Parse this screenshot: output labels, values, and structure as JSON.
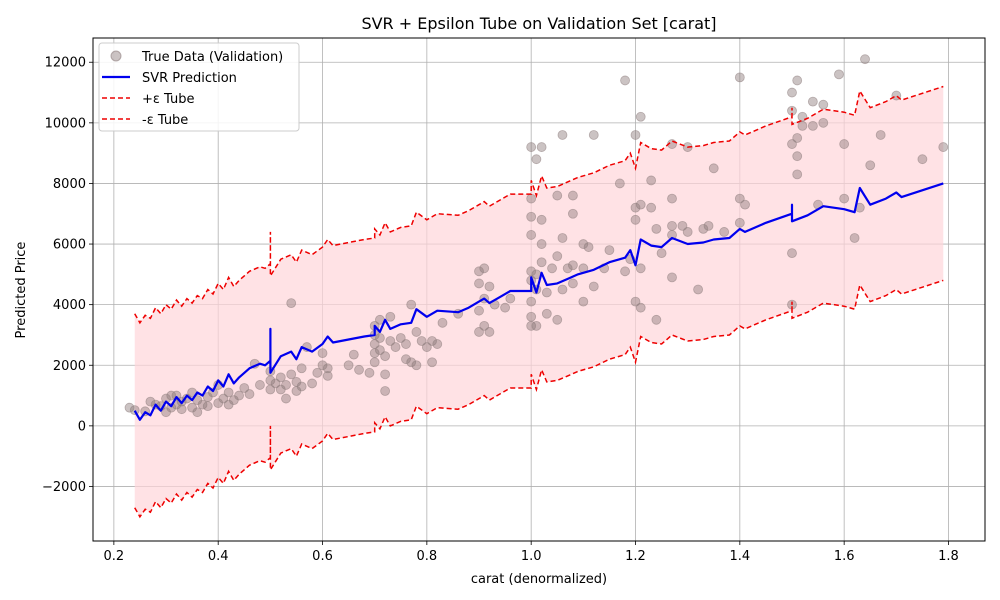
{
  "chart_data": {
    "type": "scatter",
    "title": "SVR + Epsilon Tube on Validation Set [carat]",
    "xlabel": "carat (denormalized)",
    "ylabel": "Predicted Price",
    "xlim": [
      0.16,
      1.87
    ],
    "ylim": [
      -3800,
      12800
    ],
    "xticks": [
      0.2,
      0.4,
      0.6,
      0.8,
      1.0,
      1.2,
      1.4,
      1.6,
      1.8
    ],
    "xtick_labels": [
      "0.2",
      "0.4",
      "0.6",
      "0.8",
      "1.0",
      "1.2",
      "1.4",
      "1.6",
      "1.8"
    ],
    "yticks": [
      -2000,
      0,
      2000,
      4000,
      6000,
      8000,
      10000,
      12000
    ],
    "ytick_labels": [
      "−2000",
      "0",
      "2000",
      "4000",
      "6000",
      "8000",
      "10000",
      "12000"
    ],
    "grid": true,
    "legend_position": "top-left",
    "epsilon": 3200,
    "colors": {
      "scatter": "#8c7b7b",
      "prediction": "#0000ee",
      "tube": "#ee0000",
      "tube_fill": "#ffd6da"
    },
    "series": [
      {
        "name": "True Data (Validation)",
        "kind": "scatter",
        "points": [
          [
            0.23,
            600
          ],
          [
            0.24,
            520
          ],
          [
            0.26,
            480
          ],
          [
            0.27,
            800
          ],
          [
            0.28,
            700
          ],
          [
            0.29,
            650
          ],
          [
            0.3,
            900
          ],
          [
            0.3,
            450
          ],
          [
            0.31,
            1000
          ],
          [
            0.31,
            600
          ],
          [
            0.32,
            700
          ],
          [
            0.32,
            1000
          ],
          [
            0.33,
            800
          ],
          [
            0.33,
            550
          ],
          [
            0.34,
            900
          ],
          [
            0.35,
            1100
          ],
          [
            0.35,
            600
          ],
          [
            0.36,
            450
          ],
          [
            0.36,
            850
          ],
          [
            0.37,
            700
          ],
          [
            0.38,
            950
          ],
          [
            0.38,
            650
          ],
          [
            0.39,
            1100
          ],
          [
            0.4,
            750
          ],
          [
            0.4,
            1350
          ],
          [
            0.41,
            900
          ],
          [
            0.42,
            700
          ],
          [
            0.42,
            1100
          ],
          [
            0.43,
            850
          ],
          [
            0.44,
            1000
          ],
          [
            0.45,
            1250
          ],
          [
            0.46,
            1050
          ],
          [
            0.47,
            2050
          ],
          [
            0.48,
            1350
          ],
          [
            0.5,
            1200
          ],
          [
            0.5,
            1500
          ],
          [
            0.5,
            1800
          ],
          [
            0.51,
            1400
          ],
          [
            0.52,
            1600
          ],
          [
            0.52,
            1200
          ],
          [
            0.53,
            900
          ],
          [
            0.53,
            1350
          ],
          [
            0.54,
            4050
          ],
          [
            0.54,
            1700
          ],
          [
            0.55,
            1450
          ],
          [
            0.55,
            1150
          ],
          [
            0.56,
            1900
          ],
          [
            0.56,
            1300
          ],
          [
            0.57,
            2600
          ],
          [
            0.58,
            1400
          ],
          [
            0.59,
            1750
          ],
          [
            0.6,
            2000
          ],
          [
            0.6,
            2400
          ],
          [
            0.61,
            1900
          ],
          [
            0.61,
            1650
          ],
          [
            0.65,
            2000
          ],
          [
            0.66,
            2350
          ],
          [
            0.67,
            1850
          ],
          [
            0.69,
            1750
          ],
          [
            0.7,
            2100
          ],
          [
            0.7,
            2400
          ],
          [
            0.7,
            2700
          ],
          [
            0.7,
            3000
          ],
          [
            0.7,
            3300
          ],
          [
            0.71,
            2500
          ],
          [
            0.71,
            2900
          ],
          [
            0.71,
            3500
          ],
          [
            0.72,
            1700
          ],
          [
            0.72,
            1150
          ],
          [
            0.72,
            2300
          ],
          [
            0.73,
            2800
          ],
          [
            0.73,
            3600
          ],
          [
            0.74,
            2600
          ],
          [
            0.75,
            2900
          ],
          [
            0.76,
            2200
          ],
          [
            0.76,
            2700
          ],
          [
            0.77,
            2100
          ],
          [
            0.77,
            4000
          ],
          [
            0.78,
            2000
          ],
          [
            0.78,
            3100
          ],
          [
            0.79,
            2800
          ],
          [
            0.8,
            2600
          ],
          [
            0.81,
            2100
          ],
          [
            0.81,
            2800
          ],
          [
            0.82,
            2700
          ],
          [
            0.83,
            3400
          ],
          [
            0.86,
            3700
          ],
          [
            0.9,
            3800
          ],
          [
            0.9,
            3100
          ],
          [
            0.9,
            4700
          ],
          [
            0.9,
            5100
          ],
          [
            0.91,
            3300
          ],
          [
            0.91,
            4200
          ],
          [
            0.91,
            5200
          ],
          [
            0.92,
            3100
          ],
          [
            0.92,
            4600
          ],
          [
            0.93,
            4000
          ],
          [
            0.95,
            3900
          ],
          [
            0.96,
            4200
          ],
          [
            1.0,
            3300
          ],
          [
            1.0,
            3600
          ],
          [
            1.0,
            4100
          ],
          [
            1.0,
            4800
          ],
          [
            1.0,
            5100
          ],
          [
            1.0,
            6300
          ],
          [
            1.0,
            6900
          ],
          [
            1.0,
            7500
          ],
          [
            1.0,
            9200
          ],
          [
            1.01,
            4500
          ],
          [
            1.01,
            5000
          ],
          [
            1.01,
            8800
          ],
          [
            1.01,
            3300
          ],
          [
            1.02,
            5400
          ],
          [
            1.02,
            6000
          ],
          [
            1.02,
            6800
          ],
          [
            1.02,
            9200
          ],
          [
            1.03,
            4400
          ],
          [
            1.03,
            3700
          ],
          [
            1.04,
            5200
          ],
          [
            1.05,
            3500
          ],
          [
            1.05,
            5600
          ],
          [
            1.05,
            7600
          ],
          [
            1.06,
            4500
          ],
          [
            1.06,
            6200
          ],
          [
            1.06,
            9600
          ],
          [
            1.07,
            5200
          ],
          [
            1.08,
            4700
          ],
          [
            1.08,
            5300
          ],
          [
            1.08,
            7000
          ],
          [
            1.08,
            7600
          ],
          [
            1.1,
            5200
          ],
          [
            1.1,
            6000
          ],
          [
            1.1,
            4100
          ],
          [
            1.11,
            5900
          ],
          [
            1.12,
            4600
          ],
          [
            1.12,
            9600
          ],
          [
            1.14,
            5200
          ],
          [
            1.15,
            5800
          ],
          [
            1.17,
            8000
          ],
          [
            1.18,
            5100
          ],
          [
            1.18,
            11400
          ],
          [
            1.19,
            5500
          ],
          [
            1.2,
            4100
          ],
          [
            1.2,
            6800
          ],
          [
            1.2,
            7200
          ],
          [
            1.2,
            9600
          ],
          [
            1.21,
            3900
          ],
          [
            1.21,
            5200
          ],
          [
            1.21,
            7300
          ],
          [
            1.21,
            10200
          ],
          [
            1.23,
            8100
          ],
          [
            1.23,
            7200
          ],
          [
            1.24,
            3500
          ],
          [
            1.24,
            6500
          ],
          [
            1.25,
            5700
          ],
          [
            1.27,
            4900
          ],
          [
            1.27,
            6300
          ],
          [
            1.27,
            6600
          ],
          [
            1.27,
            7500
          ],
          [
            1.27,
            9300
          ],
          [
            1.29,
            6600
          ],
          [
            1.3,
            6400
          ],
          [
            1.3,
            9200
          ],
          [
            1.32,
            4500
          ],
          [
            1.33,
            6500
          ],
          [
            1.34,
            6600
          ],
          [
            1.35,
            8500
          ],
          [
            1.37,
            6400
          ],
          [
            1.4,
            6700
          ],
          [
            1.4,
            7500
          ],
          [
            1.4,
            11500
          ],
          [
            1.41,
            7300
          ],
          [
            1.5,
            4000
          ],
          [
            1.5,
            5700
          ],
          [
            1.5,
            9300
          ],
          [
            1.5,
            10400
          ],
          [
            1.5,
            11000
          ],
          [
            1.51,
            8900
          ],
          [
            1.51,
            8300
          ],
          [
            1.51,
            9500
          ],
          [
            1.51,
            11400
          ],
          [
            1.52,
            9900
          ],
          [
            1.52,
            10200
          ],
          [
            1.54,
            10700
          ],
          [
            1.54,
            9900
          ],
          [
            1.55,
            7300
          ],
          [
            1.56,
            10600
          ],
          [
            1.56,
            10000
          ],
          [
            1.59,
            11600
          ],
          [
            1.6,
            7500
          ],
          [
            1.6,
            9300
          ],
          [
            1.62,
            6200
          ],
          [
            1.63,
            7200
          ],
          [
            1.64,
            12100
          ],
          [
            1.65,
            8600
          ],
          [
            1.67,
            9600
          ],
          [
            1.7,
            10900
          ],
          [
            1.75,
            8800
          ],
          [
            1.79,
            9200
          ]
        ]
      },
      {
        "name": "SVR Prediction",
        "kind": "line",
        "points": [
          [
            0.24,
            500
          ],
          [
            0.25,
            200
          ],
          [
            0.26,
            450
          ],
          [
            0.27,
            350
          ],
          [
            0.28,
            700
          ],
          [
            0.29,
            500
          ],
          [
            0.3,
            800
          ],
          [
            0.31,
            650
          ],
          [
            0.32,
            950
          ],
          [
            0.33,
            750
          ],
          [
            0.34,
            1000
          ],
          [
            0.35,
            850
          ],
          [
            0.36,
            1100
          ],
          [
            0.37,
            1000
          ],
          [
            0.38,
            1300
          ],
          [
            0.39,
            1150
          ],
          [
            0.4,
            1500
          ],
          [
            0.41,
            1300
          ],
          [
            0.42,
            1700
          ],
          [
            0.43,
            1400
          ],
          [
            0.44,
            1600
          ],
          [
            0.46,
            1900
          ],
          [
            0.48,
            2050
          ],
          [
            0.49,
            2000
          ],
          [
            0.5,
            2150
          ],
          [
            0.5,
            3200
          ],
          [
            0.5,
            1750
          ],
          [
            0.52,
            2300
          ],
          [
            0.54,
            2450
          ],
          [
            0.55,
            2200
          ],
          [
            0.56,
            2600
          ],
          [
            0.58,
            2450
          ],
          [
            0.6,
            2700
          ],
          [
            0.61,
            2950
          ],
          [
            0.62,
            2750
          ],
          [
            0.65,
            2850
          ],
          [
            0.68,
            2950
          ],
          [
            0.7,
            3000
          ],
          [
            0.7,
            3300
          ],
          [
            0.71,
            3100
          ],
          [
            0.72,
            3500
          ],
          [
            0.73,
            3200
          ],
          [
            0.75,
            3350
          ],
          [
            0.77,
            3400
          ],
          [
            0.78,
            3850
          ],
          [
            0.8,
            3600
          ],
          [
            0.82,
            3800
          ],
          [
            0.86,
            3750
          ],
          [
            0.88,
            3900
          ],
          [
            0.9,
            4100
          ],
          [
            0.91,
            4200
          ],
          [
            0.92,
            4050
          ],
          [
            0.94,
            4250
          ],
          [
            0.96,
            4450
          ],
          [
            1.0,
            4450
          ],
          [
            1.0,
            4900
          ],
          [
            1.01,
            4400
          ],
          [
            1.02,
            5050
          ],
          [
            1.03,
            4650
          ],
          [
            1.05,
            4700
          ],
          [
            1.07,
            4850
          ],
          [
            1.09,
            5000
          ],
          [
            1.12,
            5150
          ],
          [
            1.15,
            5400
          ],
          [
            1.18,
            5550
          ],
          [
            1.19,
            5800
          ],
          [
            1.2,
            5300
          ],
          [
            1.21,
            6150
          ],
          [
            1.23,
            5950
          ],
          [
            1.25,
            5900
          ],
          [
            1.27,
            6200
          ],
          [
            1.3,
            6000
          ],
          [
            1.33,
            6050
          ],
          [
            1.35,
            6150
          ],
          [
            1.38,
            6200
          ],
          [
            1.4,
            6500
          ],
          [
            1.41,
            6400
          ],
          [
            1.45,
            6700
          ],
          [
            1.5,
            7000
          ],
          [
            1.5,
            7300
          ],
          [
            1.5,
            6750
          ],
          [
            1.53,
            6950
          ],
          [
            1.56,
            7250
          ],
          [
            1.6,
            7150
          ],
          [
            1.62,
            7050
          ],
          [
            1.63,
            7850
          ],
          [
            1.65,
            7300
          ],
          [
            1.68,
            7500
          ],
          [
            1.7,
            7700
          ],
          [
            1.71,
            7550
          ],
          [
            1.79,
            8000
          ]
        ]
      },
      {
        "name": "+ε Tube",
        "kind": "dashed",
        "offset": 3200
      },
      {
        "name": "-ε Tube",
        "kind": "dashed",
        "offset": -3200
      }
    ]
  }
}
